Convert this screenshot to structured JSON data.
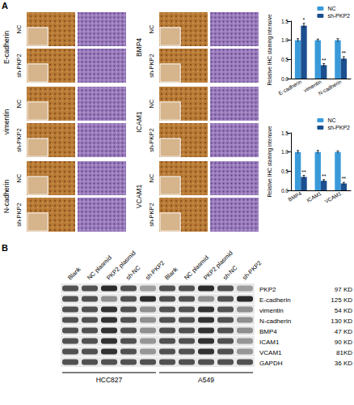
{
  "panel_a": {
    "label": "A",
    "ihc_columns": [
      {
        "stains": [
          "E-cadherin",
          "vimentin",
          "N-cadherin"
        ]
      },
      {
        "stains": [
          "BMP4",
          "ICAM1",
          "VCAM1"
        ]
      }
    ],
    "groups": [
      "NC",
      "sh-PKP2"
    ]
  },
  "chart_data": [
    {
      "type": "bar",
      "ylabel": "Relative IHC staining intensive",
      "categories": [
        "E-cadherin",
        "vimentin",
        "N-cadherin"
      ],
      "series": [
        {
          "name": "NC",
          "color": "#3a9ad9",
          "values": [
            1.0,
            1.0,
            1.0
          ],
          "errors": [
            0.04,
            0.03,
            0.04
          ]
        },
        {
          "name": "sh-PKP2",
          "color": "#1c4f8f",
          "values": [
            1.38,
            0.35,
            0.52
          ],
          "errors": [
            0.06,
            0.04,
            0.05
          ],
          "significance": [
            "*",
            "**",
            "**"
          ]
        }
      ],
      "ylim": [
        0,
        1.5
      ],
      "yticks": [
        {
          "value": 0,
          "label": "0.0"
        },
        {
          "value": 0.5,
          "label": "0.5"
        },
        {
          "value": 1,
          "label": "1.0"
        },
        {
          "value": 1.5,
          "label": "1.5"
        }
      ],
      "grid": false,
      "legend": "top-right"
    },
    {
      "type": "bar",
      "ylabel": "Relative IHC staining intensive",
      "categories": [
        "BMP4",
        "ICAM1",
        "VCAM1"
      ],
      "series": [
        {
          "name": "NC",
          "color": "#3a9ad9",
          "values": [
            1.0,
            1.0,
            1.0
          ],
          "errors": [
            0.04,
            0.04,
            0.03
          ]
        },
        {
          "name": "sh-PKP2",
          "color": "#1c4f8f",
          "values": [
            0.35,
            0.25,
            0.18
          ],
          "errors": [
            0.04,
            0.03,
            0.03
          ],
          "significance": [
            "**",
            "**",
            "**"
          ]
        }
      ],
      "ylim": [
        0,
        1.5
      ],
      "yticks": [
        {
          "value": 0,
          "label": "0.0"
        },
        {
          "value": 0.5,
          "label": "0.5"
        },
        {
          "value": 1,
          "label": "1.0"
        },
        {
          "value": 1.5,
          "label": "1.5"
        }
      ],
      "grid": false,
      "legend": "top-right"
    }
  ],
  "panel_b": {
    "label": "B",
    "lanes": [
      "Blank",
      "NC plasmid",
      "PKP2 plasmid",
      "sh-NC",
      "sh-PKP2"
    ],
    "cell_lines": [
      "HCC827",
      "A549"
    ],
    "bands": [
      {
        "protein": "PKP2",
        "size": "97 KD",
        "intensity": [
          1,
          1,
          1.25,
          1,
          0.5,
          1,
          1,
          1.25,
          1,
          0.5
        ]
      },
      {
        "protein": "E-cadherin",
        "size": "125 KD",
        "intensity": [
          1,
          1,
          0.6,
          1,
          1.25,
          1,
          1,
          0.6,
          1,
          1.25
        ]
      },
      {
        "protein": "vimentin",
        "size": "54 KD",
        "intensity": [
          1,
          1,
          1.2,
          1,
          0.6,
          1,
          1,
          1.2,
          1,
          0.6
        ]
      },
      {
        "protein": "N-cadherin",
        "size": "130 KD",
        "intensity": [
          1,
          1,
          1.2,
          1,
          0.6,
          1,
          1,
          1.2,
          1,
          0.6
        ]
      },
      {
        "protein": "BMP4",
        "size": "47 KD",
        "intensity": [
          1,
          1,
          1.2,
          1,
          0.6,
          1,
          1,
          1.2,
          1,
          0.6
        ]
      },
      {
        "protein": "ICAM1",
        "size": "90 KD",
        "intensity": [
          1,
          1,
          1.2,
          1,
          0.55,
          1,
          1,
          1.2,
          1,
          0.55
        ]
      },
      {
        "protein": "VCAM1",
        "size": "81KD",
        "intensity": [
          1,
          1,
          1.2,
          1,
          0.55,
          1,
          1,
          1.2,
          1,
          0.55
        ]
      },
      {
        "protein": "GAPDH",
        "size": "36 KD",
        "intensity": [
          1,
          1,
          1,
          1,
          1,
          1,
          1,
          1,
          1,
          1
        ]
      }
    ]
  }
}
